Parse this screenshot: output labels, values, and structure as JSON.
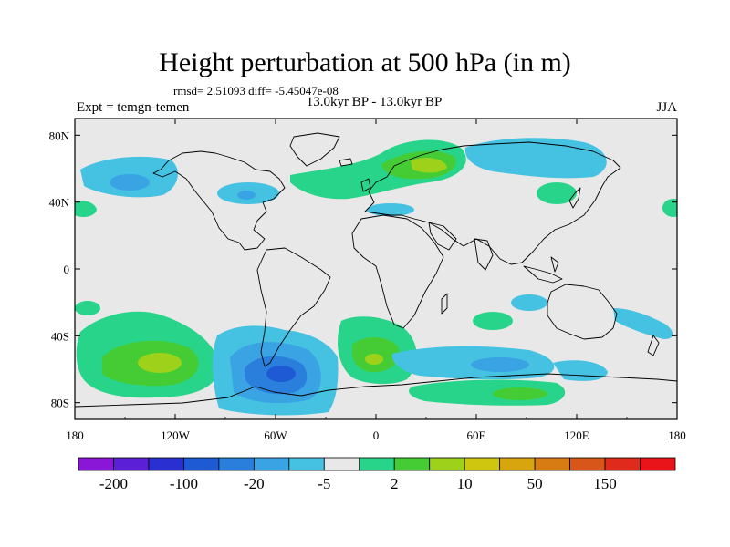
{
  "title": "Height perturbation at 500 hPa (in m)",
  "stats_line": "rmsd= 2.51093 diff= -5.45047e-08",
  "experiment_label": "Expt = temgn-temen",
  "period_label": "13.0kyr BP - 13.0kyr BP",
  "season_label": "JJA",
  "map": {
    "projection": "cylindrical equidistant",
    "lon_range": [
      -180,
      180
    ],
    "lat_range": [
      -90,
      90
    ],
    "x_ticks": [
      "180",
      "120W",
      "60W",
      "0",
      "60E",
      "120E",
      "180"
    ],
    "y_ticks": [
      "80N",
      "40N",
      "0",
      "40S",
      "80S"
    ],
    "background_color": "#e8e8e8",
    "coastline_color": "#000000"
  },
  "colorbar": {
    "colors": [
      "#8a17d8",
      "#5a1fd6",
      "#2a2fd1",
      "#1e5ad4",
      "#2b7fdc",
      "#3aa3e4",
      "#45c1e2",
      "#e8e8e8",
      "#28d489",
      "#45cc35",
      "#9ed21a",
      "#cfc60f",
      "#d8a50e",
      "#d77c12",
      "#d8561a",
      "#df2a1c",
      "#e8141a"
    ],
    "labels": [
      "-200",
      "-100",
      "-20",
      "-5",
      "2",
      "10",
      "50",
      "150"
    ]
  },
  "anomalies": [
    {
      "region": "north-pacific",
      "sign": "negative",
      "max_level": "-5"
    },
    {
      "region": "northern-europe-scandinavia",
      "sign": "positive",
      "max_level": "10"
    },
    {
      "region": "north-asia",
      "sign": "negative",
      "max_level": "-2"
    },
    {
      "region": "south-pacific-45S",
      "sign": "positive",
      "max_level": "10"
    },
    {
      "region": "drake-passage-south-atlantic",
      "sign": "negative",
      "max_level": "-20"
    },
    {
      "region": "south-atlantic-0E",
      "sign": "positive",
      "max_level": "10"
    },
    {
      "region": "southern-indian-ocean",
      "sign": "mixed",
      "max_level": "-5"
    },
    {
      "region": "antarctic-coast-90E",
      "sign": "positive",
      "max_level": "10"
    }
  ]
}
